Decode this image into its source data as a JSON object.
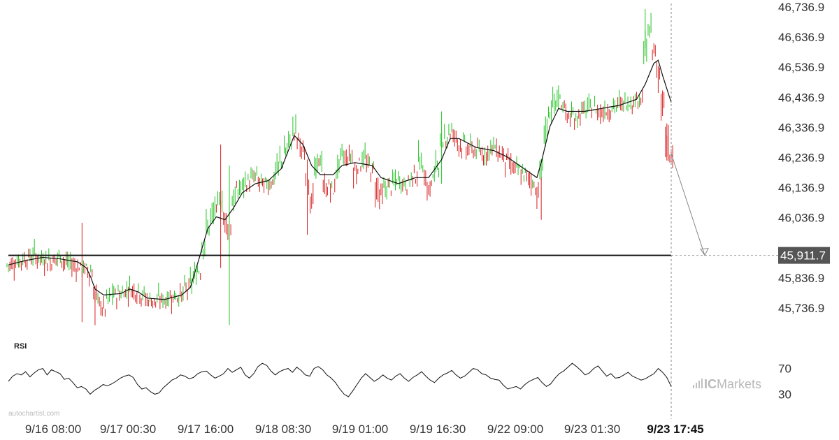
{
  "chart_data": {
    "type": "candlestick",
    "y_ticks": [
      "46,736.9",
      "46,636.9",
      "46,536.9",
      "46,436.9",
      "46,336.9",
      "46,236.9",
      "46,136.9",
      "46,036.9",
      "45,836.9",
      "45,736.9"
    ],
    "y_tick_values": [
      46736.9,
      46636.9,
      46536.9,
      46436.9,
      46336.9,
      46236.9,
      46136.9,
      46036.9,
      45836.9,
      45736.9
    ],
    "ylim": [
      45650,
      46750
    ],
    "x_ticks": [
      "9/16 08:00",
      "9/17 00:30",
      "9/17 16:00",
      "9/18 08:30",
      "9/19 01:00",
      "9/19 16:30",
      "9/22 09:00",
      "9/23 01:30",
      "9/23 17:45"
    ],
    "current_time_label": "9/23 17:45",
    "target_level": 45911.7,
    "target_label": "45,911.7",
    "price_path": [
      [
        0,
        45880
      ],
      [
        3,
        45895
      ],
      [
        6,
        45910
      ],
      [
        8,
        45900
      ],
      [
        10,
        45895
      ],
      [
        12,
        45905
      ],
      [
        14,
        45885
      ],
      [
        17,
        45870
      ],
      [
        19,
        45860
      ],
      [
        20,
        45800
      ],
      [
        21,
        45760
      ],
      [
        22,
        45740
      ],
      [
        24,
        45775
      ],
      [
        26,
        45785
      ],
      [
        28,
        45800
      ],
      [
        30,
        45795
      ],
      [
        32,
        45770
      ],
      [
        34,
        45760
      ],
      [
        36,
        45765
      ],
      [
        38,
        45775
      ],
      [
        40,
        45780
      ],
      [
        42,
        45810
      ],
      [
        44,
        45860
      ],
      [
        45,
        45930
      ],
      [
        46,
        45990
      ],
      [
        47,
        46030
      ],
      [
        48,
        46060
      ],
      [
        49,
        46090
      ],
      [
        50,
        46040
      ],
      [
        51,
        46020
      ],
      [
        52,
        46080
      ],
      [
        53,
        46120
      ],
      [
        55,
        46150
      ],
      [
        57,
        46170
      ],
      [
        59,
        46145
      ],
      [
        61,
        46160
      ],
      [
        63,
        46220
      ],
      [
        65,
        46280
      ],
      [
        66,
        46320
      ],
      [
        67,
        46300
      ],
      [
        68,
        46260
      ],
      [
        69,
        46170
      ],
      [
        70,
        46120
      ],
      [
        71,
        46180
      ],
      [
        72,
        46220
      ],
      [
        73,
        46150
      ],
      [
        75,
        46130
      ],
      [
        76,
        46190
      ],
      [
        77,
        46230
      ],
      [
        79,
        46240
      ],
      [
        80,
        46200
      ],
      [
        82,
        46230
      ],
      [
        84,
        46200
      ],
      [
        85,
        46150
      ],
      [
        86,
        46120
      ],
      [
        88,
        46140
      ],
      [
        90,
        46160
      ],
      [
        92,
        46150
      ],
      [
        94,
        46180
      ],
      [
        95,
        46220
      ],
      [
        96,
        46190
      ],
      [
        97,
        46140
      ],
      [
        98,
        46160
      ],
      [
        99,
        46210
      ],
      [
        100,
        46260
      ],
      [
        101,
        46300
      ],
      [
        102,
        46320
      ],
      [
        103,
        46310
      ],
      [
        104,
        46290
      ],
      [
        106,
        46270
      ],
      [
        108,
        46260
      ],
      [
        110,
        46250
      ],
      [
        112,
        46270
      ],
      [
        114,
        46250
      ],
      [
        115,
        46230
      ],
      [
        117,
        46200
      ],
      [
        119,
        46180
      ],
      [
        121,
        46160
      ],
      [
        122,
        46130
      ],
      [
        123,
        46180
      ],
      [
        124,
        46300
      ],
      [
        125,
        46360
      ],
      [
        126,
        46400
      ],
      [
        127,
        46430
      ],
      [
        128,
        46420
      ],
      [
        129,
        46380
      ],
      [
        131,
        46370
      ],
      [
        133,
        46390
      ],
      [
        135,
        46400
      ],
      [
        137,
        46390
      ],
      [
        139,
        46400
      ],
      [
        141,
        46410
      ],
      [
        143,
        46420
      ],
      [
        145,
        46430
      ],
      [
        146,
        46440
      ],
      [
        147,
        46560
      ],
      [
        148,
        46640
      ],
      [
        149,
        46600
      ],
      [
        150,
        46520
      ],
      [
        151,
        46440
      ],
      [
        152,
        46320
      ],
      [
        153,
        46250
      ]
    ],
    "sma_path": [
      [
        0,
        45880
      ],
      [
        4,
        45895
      ],
      [
        8,
        45905
      ],
      [
        12,
        45900
      ],
      [
        16,
        45890
      ],
      [
        18,
        45870
      ],
      [
        19,
        45840
      ],
      [
        20,
        45800
      ],
      [
        22,
        45780
      ],
      [
        26,
        45785
      ],
      [
        28,
        45800
      ],
      [
        30,
        45790
      ],
      [
        32,
        45770
      ],
      [
        36,
        45765
      ],
      [
        40,
        45780
      ],
      [
        42,
        45805
      ],
      [
        44,
        45900
      ],
      [
        46,
        46000
      ],
      [
        48,
        46040
      ],
      [
        50,
        46030
      ],
      [
        52,
        46070
      ],
      [
        54,
        46120
      ],
      [
        57,
        46150
      ],
      [
        60,
        46160
      ],
      [
        63,
        46200
      ],
      [
        66,
        46310
      ],
      [
        68,
        46280
      ],
      [
        70,
        46210
      ],
      [
        72,
        46180
      ],
      [
        75,
        46180
      ],
      [
        77,
        46210
      ],
      [
        80,
        46220
      ],
      [
        84,
        46210
      ],
      [
        86,
        46170
      ],
      [
        90,
        46150
      ],
      [
        94,
        46170
      ],
      [
        97,
        46170
      ],
      [
        100,
        46230
      ],
      [
        102,
        46300
      ],
      [
        104,
        46300
      ],
      [
        108,
        46270
      ],
      [
        112,
        46260
      ],
      [
        115,
        46240
      ],
      [
        119,
        46200
      ],
      [
        122,
        46170
      ],
      [
        123,
        46220
      ],
      [
        125,
        46340
      ],
      [
        127,
        46400
      ],
      [
        129,
        46390
      ],
      [
        133,
        46390
      ],
      [
        137,
        46400
      ],
      [
        141,
        46410
      ],
      [
        145,
        46430
      ],
      [
        147,
        46480
      ],
      [
        149,
        46550
      ],
      [
        150,
        46560
      ],
      [
        151,
        46510
      ],
      [
        153,
        46420
      ]
    ],
    "rsi": {
      "title": "RSI",
      "ticks": [
        "70",
        "30"
      ],
      "tick_values": [
        70,
        30
      ],
      "values": [
        50,
        58,
        62,
        60,
        65,
        57,
        63,
        68,
        70,
        60,
        68,
        65,
        62,
        53,
        55,
        48,
        40,
        42,
        38,
        30,
        36,
        40,
        45,
        43,
        46,
        50,
        55,
        58,
        60,
        56,
        45,
        38,
        40,
        34,
        30,
        32,
        40,
        46,
        52,
        55,
        60,
        58,
        54,
        56,
        62,
        65,
        66,
        60,
        55,
        58,
        62,
        70,
        64,
        68,
        72,
        60,
        55,
        62,
        73,
        78,
        75,
        66,
        60,
        65,
        68,
        70,
        64,
        72,
        67,
        60,
        58,
        70,
        73,
        68,
        60,
        55,
        48,
        38,
        30,
        26,
        35,
        45,
        55,
        62,
        56,
        50,
        54,
        60,
        55,
        52,
        58,
        62,
        55,
        50,
        56,
        60,
        65,
        58,
        52,
        48,
        55,
        60,
        63,
        67,
        60,
        55,
        58,
        64,
        70,
        68,
        62,
        60,
        55,
        53,
        52,
        44,
        38,
        40,
        42,
        38,
        45,
        50,
        53,
        56,
        48,
        42,
        46,
        55,
        62,
        66,
        72,
        78,
        73,
        67,
        60,
        63,
        70,
        74,
        66,
        58,
        62,
        55,
        56,
        60,
        64,
        58,
        55,
        52,
        54,
        58,
        62,
        70,
        64,
        56,
        42
      ]
    }
  },
  "watermark": "autochartist.com",
  "brand": {
    "ic": "IC",
    "rest": "Markets"
  },
  "colors": {
    "up": "#27c427",
    "down": "#d71f1f",
    "sma": "#111111",
    "level": "#111111",
    "target_box": "#555555"
  }
}
